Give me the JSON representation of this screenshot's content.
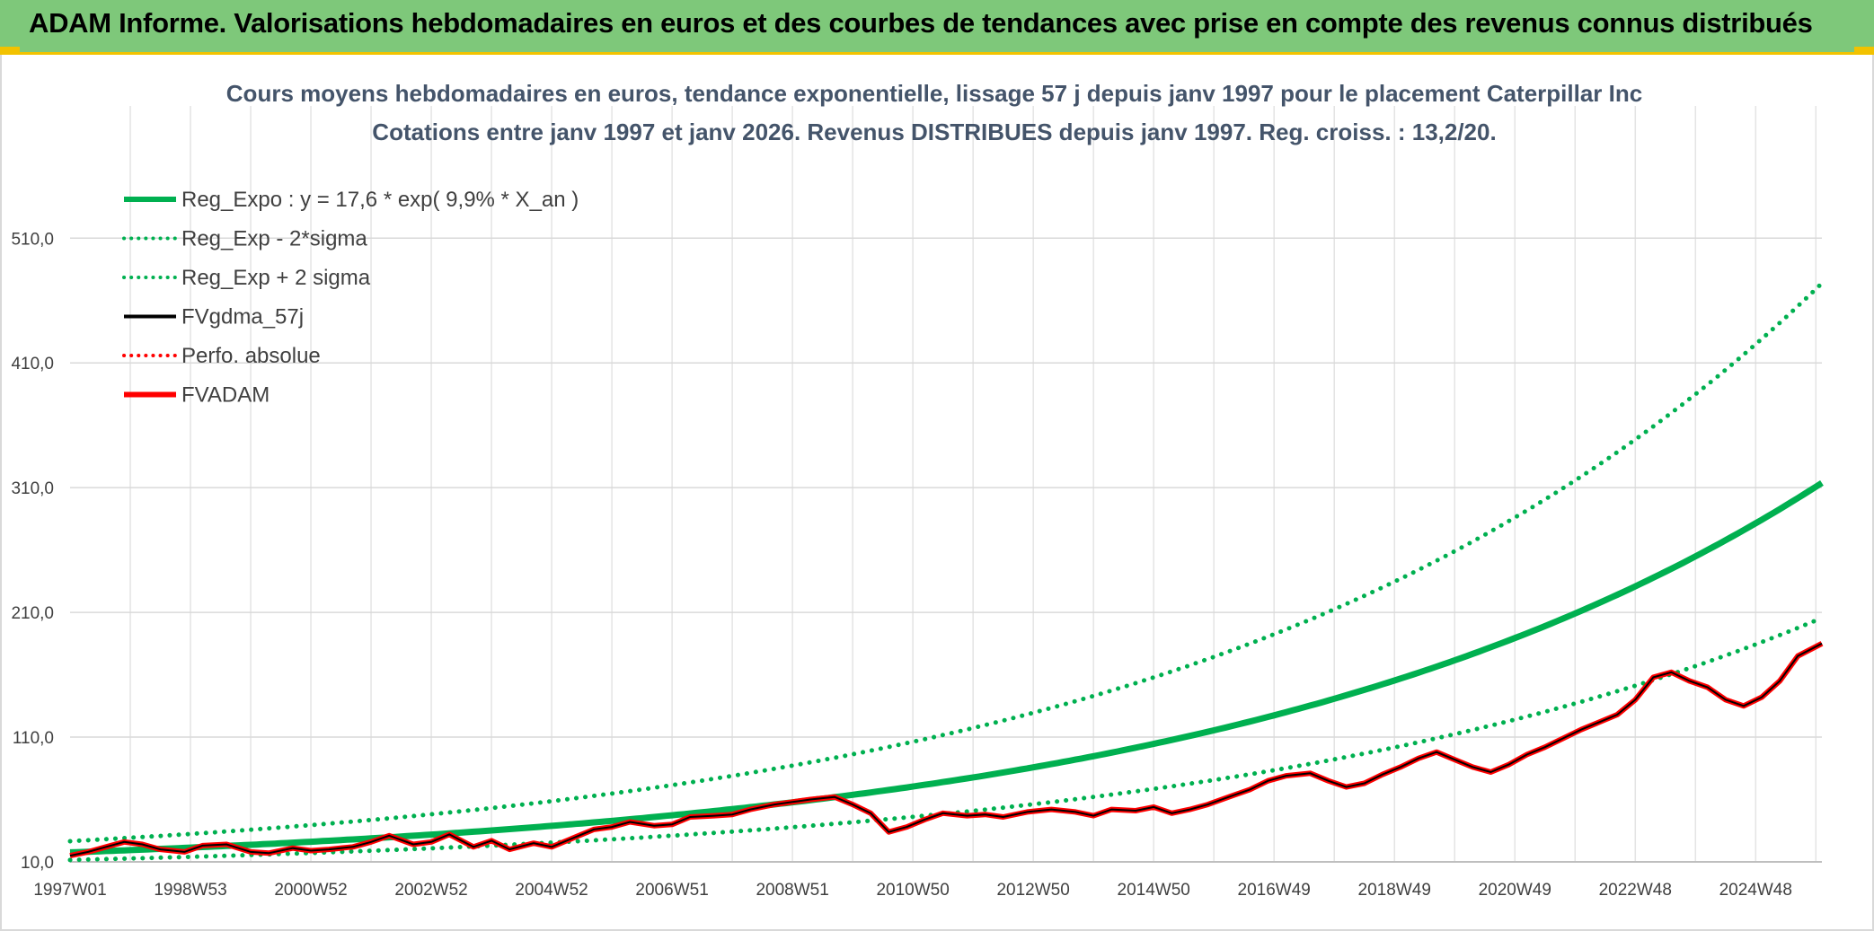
{
  "header": {
    "title": "ADAM Informe. Valorisations hebdomadaires en euros et des courbes de tendances avec prise en compte des revenus connus distribués"
  },
  "chart_data": {
    "type": "line",
    "title": "Cours moyens hebdomadaires en euros, tendance exponentielle, lissage 57 j depuis janv 1997 pour le placement Caterpillar Inc",
    "subtitle": "Cotations entre janv 1997 et janv 2026. Revenus DISTRIBUES depuis janv 1997. Reg. croiss. : 13,2/20.",
    "x_tick_labels": [
      "1997W01",
      "1998W53",
      "2000W52",
      "2002W52",
      "2004W52",
      "2006W51",
      "2008W51",
      "2010W50",
      "2012W50",
      "2014W50",
      "2016W49",
      "2018W49",
      "2020W49",
      "2022W48",
      "2024W48"
    ],
    "x_tick_years": [
      1997,
      1999,
      2001,
      2003,
      2005,
      2007,
      2009,
      2011,
      2013,
      2015,
      2017,
      2019,
      2021,
      2023,
      2025
    ],
    "xlim": [
      1997,
      2026.1
    ],
    "y_tick_labels": [
      "10,0",
      "110,0",
      "210,0",
      "310,0",
      "410,0",
      "510,0"
    ],
    "y_ticks": [
      10,
      110,
      210,
      310,
      410,
      510
    ],
    "ylim": [
      10,
      580
    ],
    "grid": true,
    "legend_position": "top-left",
    "legend": [
      {
        "label": "Reg_Expo : y = 17,6 * exp( 9,9% *  X_an )",
        "color": "#00b050",
        "style": "solid-thick"
      },
      {
        "label": "Reg_Exp - 2*sigma",
        "color": "#00b050",
        "style": "dotted"
      },
      {
        "label": "Reg_Exp + 2 sigma",
        "color": "#00b050",
        "style": "dotted"
      },
      {
        "label": "FVgdma_57j",
        "color": "#000000",
        "style": "solid"
      },
      {
        "label": "Perfo. absolue",
        "color": "#ff0000",
        "style": "dotted"
      },
      {
        "label": "FVADAM",
        "color": "#ff0000",
        "style": "solid-thick"
      }
    ],
    "regression": {
      "a": 17.6,
      "b": 0.099,
      "minus_2sigma_factor": 0.655,
      "plus_2sigma_factor": 1.51
    },
    "series": [
      {
        "name": "FVADAM",
        "color": "#ff0000",
        "points": [
          [
            1997.0,
            15
          ],
          [
            1997.3,
            18
          ],
          [
            1997.6,
            22
          ],
          [
            1997.9,
            26
          ],
          [
            1998.2,
            24
          ],
          [
            1998.5,
            20
          ],
          [
            1998.9,
            18
          ],
          [
            1999.2,
            23
          ],
          [
            1999.6,
            24
          ],
          [
            2000.0,
            18
          ],
          [
            2000.3,
            17
          ],
          [
            2000.7,
            21
          ],
          [
            2001.0,
            19
          ],
          [
            2001.3,
            20
          ],
          [
            2001.7,
            22
          ],
          [
            2002.0,
            26
          ],
          [
            2002.3,
            31
          ],
          [
            2002.7,
            24
          ],
          [
            2003.0,
            26
          ],
          [
            2003.3,
            32
          ],
          [
            2003.7,
            22
          ],
          [
            2004.0,
            27
          ],
          [
            2004.3,
            20
          ],
          [
            2004.7,
            25
          ],
          [
            2005.0,
            22
          ],
          [
            2005.3,
            28
          ],
          [
            2005.7,
            36
          ],
          [
            2006.0,
            38
          ],
          [
            2006.3,
            42
          ],
          [
            2006.7,
            39
          ],
          [
            2007.0,
            40
          ],
          [
            2007.3,
            46
          ],
          [
            2007.7,
            47
          ],
          [
            2008.0,
            48
          ],
          [
            2008.3,
            52
          ],
          [
            2008.7,
            56
          ],
          [
            2009.0,
            58
          ],
          [
            2009.3,
            60
          ],
          [
            2009.7,
            62
          ],
          [
            2010.0,
            56
          ],
          [
            2010.3,
            49
          ],
          [
            2010.6,
            34
          ],
          [
            2010.9,
            38
          ],
          [
            2011.2,
            44
          ],
          [
            2011.5,
            49
          ],
          [
            2011.9,
            47
          ],
          [
            2012.2,
            48
          ],
          [
            2012.5,
            46
          ],
          [
            2012.9,
            50
          ],
          [
            2013.3,
            52
          ],
          [
            2013.7,
            50
          ],
          [
            2014.0,
            47
          ],
          [
            2014.3,
            52
          ],
          [
            2014.7,
            51
          ],
          [
            2015.0,
            54
          ],
          [
            2015.3,
            49
          ],
          [
            2015.6,
            52
          ],
          [
            2015.9,
            56
          ],
          [
            2016.3,
            63
          ],
          [
            2016.6,
            68
          ],
          [
            2016.9,
            75
          ],
          [
            2017.2,
            79
          ],
          [
            2017.6,
            81
          ],
          [
            2017.9,
            75
          ],
          [
            2018.2,
            70
          ],
          [
            2018.5,
            73
          ],
          [
            2018.8,
            80
          ],
          [
            2019.1,
            86
          ],
          [
            2019.4,
            93
          ],
          [
            2019.7,
            98
          ],
          [
            2020.0,
            92
          ],
          [
            2020.3,
            86
          ],
          [
            2020.6,
            82
          ],
          [
            2020.9,
            88
          ],
          [
            2021.2,
            96
          ],
          [
            2021.5,
            102
          ],
          [
            2021.8,
            109
          ],
          [
            2022.1,
            116
          ],
          [
            2022.4,
            122
          ],
          [
            2022.7,
            128
          ],
          [
            2023.0,
            140
          ],
          [
            2023.3,
            158
          ],
          [
            2023.6,
            162
          ],
          [
            2023.9,
            155
          ],
          [
            2024.2,
            150
          ],
          [
            2024.5,
            140
          ],
          [
            2024.8,
            135
          ],
          [
            2025.1,
            142
          ],
          [
            2025.4,
            155
          ],
          [
            2025.7,
            175
          ],
          [
            2026.1,
            185
          ]
        ]
      }
    ]
  }
}
